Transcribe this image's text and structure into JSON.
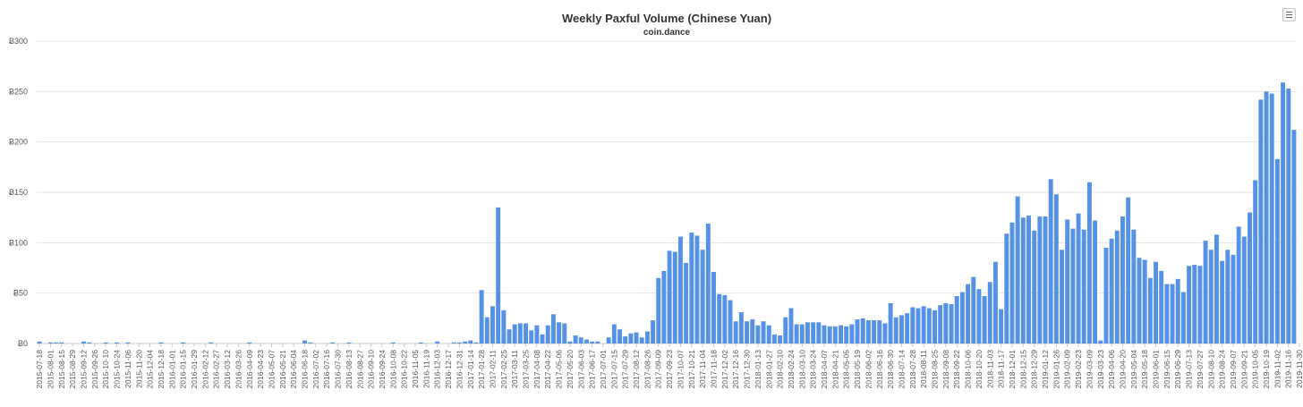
{
  "chart_data": {
    "type": "bar",
    "title": "Weekly Paxful Volume (Chinese Yuan)",
    "subtitle": "coin.dance",
    "xlabel": "",
    "ylabel": "",
    "ylim": [
      0,
      300
    ],
    "yticks": [
      0,
      50,
      100,
      150,
      200,
      250,
      300
    ],
    "ytick_prefix": "Ƀ",
    "grid": true,
    "bar_color": "#5592e6",
    "start_date": "2015-07-18",
    "tick_labels": [
      "2015-07-18",
      "2015-08-01",
      "2015-08-15",
      "2015-08-29",
      "2015-09-12",
      "2015-09-26",
      "2015-10-10",
      "2015-10-24",
      "2015-11-06",
      "2015-11-20",
      "2015-12-04",
      "2015-12-18",
      "2016-01-01",
      "2016-01-15",
      "2016-01-29",
      "2016-02-12",
      "2016-02-27",
      "2016-03-12",
      "2016-03-26",
      "2016-04-09",
      "2016-04-23",
      "2016-05-07",
      "2016-05-21",
      "2016-06-04",
      "2016-06-18",
      "2016-07-02",
      "2016-07-16",
      "2016-07-30",
      "2016-08-13",
      "2016-08-27",
      "2016-09-10",
      "2016-09-24",
      "2016-10-08",
      "2016-10-22",
      "2016-11-05",
      "2016-11-19",
      "2016-12-03",
      "2016-12-17",
      "2016-12-31",
      "2017-01-14",
      "2017-01-28",
      "2017-02-11",
      "2017-02-25",
      "2017-03-11",
      "2017-03-25",
      "2017-04-08",
      "2017-04-22",
      "2017-05-06",
      "2017-05-20",
      "2017-06-03",
      "2017-06-17",
      "2017-07-01",
      "2017-07-15",
      "2017-07-29",
      "2017-08-12",
      "2017-08-26",
      "2017-09-09",
      "2017-09-23",
      "2017-10-07",
      "2017-10-21",
      "2017-11-04",
      "2017-11-18",
      "2017-12-02",
      "2017-12-16",
      "2017-12-30",
      "2018-01-13",
      "2018-01-27",
      "2018-02-10",
      "2018-02-24",
      "2018-03-10",
      "2018-03-24",
      "2018-04-07",
      "2018-04-21",
      "2018-05-05",
      "2018-05-19",
      "2018-06-02",
      "2018-06-16",
      "2018-06-30",
      "2018-07-14",
      "2018-07-28",
      "2018-08-11",
      "2018-08-25",
      "2018-09-08",
      "2018-09-22",
      "2018-10-06",
      "2018-10-20",
      "2018-11-03",
      "2018-11-17",
      "2018-12-01",
      "2018-12-15",
      "2018-12-29",
      "2019-01-12",
      "2019-01-26",
      "2019-02-09",
      "2019-02-23",
      "2019-03-09",
      "2019-03-23",
      "2019-04-06",
      "2019-04-20",
      "2019-05-04",
      "2019-05-18",
      "2019-06-01",
      "2019-06-15",
      "2019-06-29",
      "2019-07-13",
      "2019-07-27",
      "2019-08-10",
      "2019-08-24",
      "2019-09-07",
      "2019-09-21",
      "2019-10-05",
      "2019-10-19",
      "2019-11-02",
      "2019-11-16",
      "2019-11-30"
    ],
    "values": [
      2,
      0,
      1,
      1,
      1,
      0,
      0,
      0,
      2,
      1,
      0,
      0,
      1,
      0,
      1,
      0,
      1,
      0,
      0,
      0,
      0,
      0,
      1,
      0,
      0,
      0,
      1,
      0,
      0,
      0,
      0,
      1,
      0,
      0,
      0,
      0,
      0,
      0,
      1,
      0,
      0,
      0,
      0,
      0,
      0,
      0,
      0,
      0,
      3,
      1,
      0,
      0,
      0,
      1,
      0,
      0,
      1,
      0,
      0,
      0,
      0,
      0,
      0,
      0,
      1,
      0,
      0,
      0,
      0,
      1,
      0,
      0,
      2,
      0,
      0,
      1,
      1,
      2,
      3,
      1,
      53,
      26,
      37,
      135,
      33,
      14,
      19,
      20,
      20,
      13,
      18,
      9,
      18,
      29,
      21,
      20,
      2,
      8,
      6,
      4,
      2,
      2,
      0,
      6,
      19,
      14,
      7,
      10,
      11,
      6,
      12,
      23,
      65,
      72,
      92,
      91,
      106,
      80,
      110,
      107,
      93,
      119,
      71,
      49,
      48,
      43,
      22,
      31,
      22,
      24,
      18,
      22,
      18,
      9,
      8,
      26,
      35,
      19,
      19,
      21,
      21,
      21,
      18,
      17,
      17,
      18,
      17,
      19,
      24,
      25,
      23,
      23,
      23,
      20,
      40,
      26,
      28,
      30,
      36,
      35,
      37,
      35,
      33,
      38,
      40,
      39,
      47,
      51,
      59,
      66,
      54,
      47,
      61,
      81,
      34,
      109,
      120,
      146,
      125,
      127,
      112,
      126,
      126,
      163,
      148,
      93,
      123,
      114,
      129,
      113,
      160,
      122,
      3,
      95,
      104,
      112,
      126,
      145,
      113,
      85,
      83,
      65,
      81,
      72,
      59,
      59,
      64,
      51,
      77,
      78,
      77,
      102,
      93,
      108,
      82,
      93,
      88,
      116,
      106,
      130,
      162,
      242,
      250,
      248,
      183,
      259,
      253,
      212
    ]
  },
  "menu": {
    "icon": "hamburger-menu-icon"
  }
}
